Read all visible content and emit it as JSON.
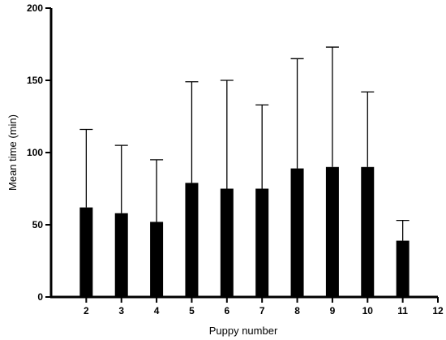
{
  "chart_data": {
    "type": "bar",
    "title": "",
    "xlabel": "Puppy number",
    "ylabel": "Mean time (min)",
    "x_ticks": [
      "2",
      "3",
      "4",
      "5",
      "6",
      "7",
      "8",
      "9",
      "10",
      "11",
      "12"
    ],
    "y_ticks": [
      "0",
      "50",
      "100",
      "150",
      "200"
    ],
    "xlim": [
      1,
      12
    ],
    "ylim": [
      0,
      200
    ],
    "categories": [
      "2",
      "3",
      "4",
      "5",
      "6",
      "7",
      "8",
      "9",
      "10",
      "11"
    ],
    "series": [
      {
        "values": [
          62,
          58,
          52,
          79,
          75,
          75,
          89,
          90,
          90,
          39
        ],
        "error_upper": [
          116,
          105,
          95,
          149,
          150,
          133,
          165,
          173,
          142,
          53
        ]
      }
    ],
    "grid": false,
    "bar_color": "#000000",
    "axis_color": "#000000"
  }
}
